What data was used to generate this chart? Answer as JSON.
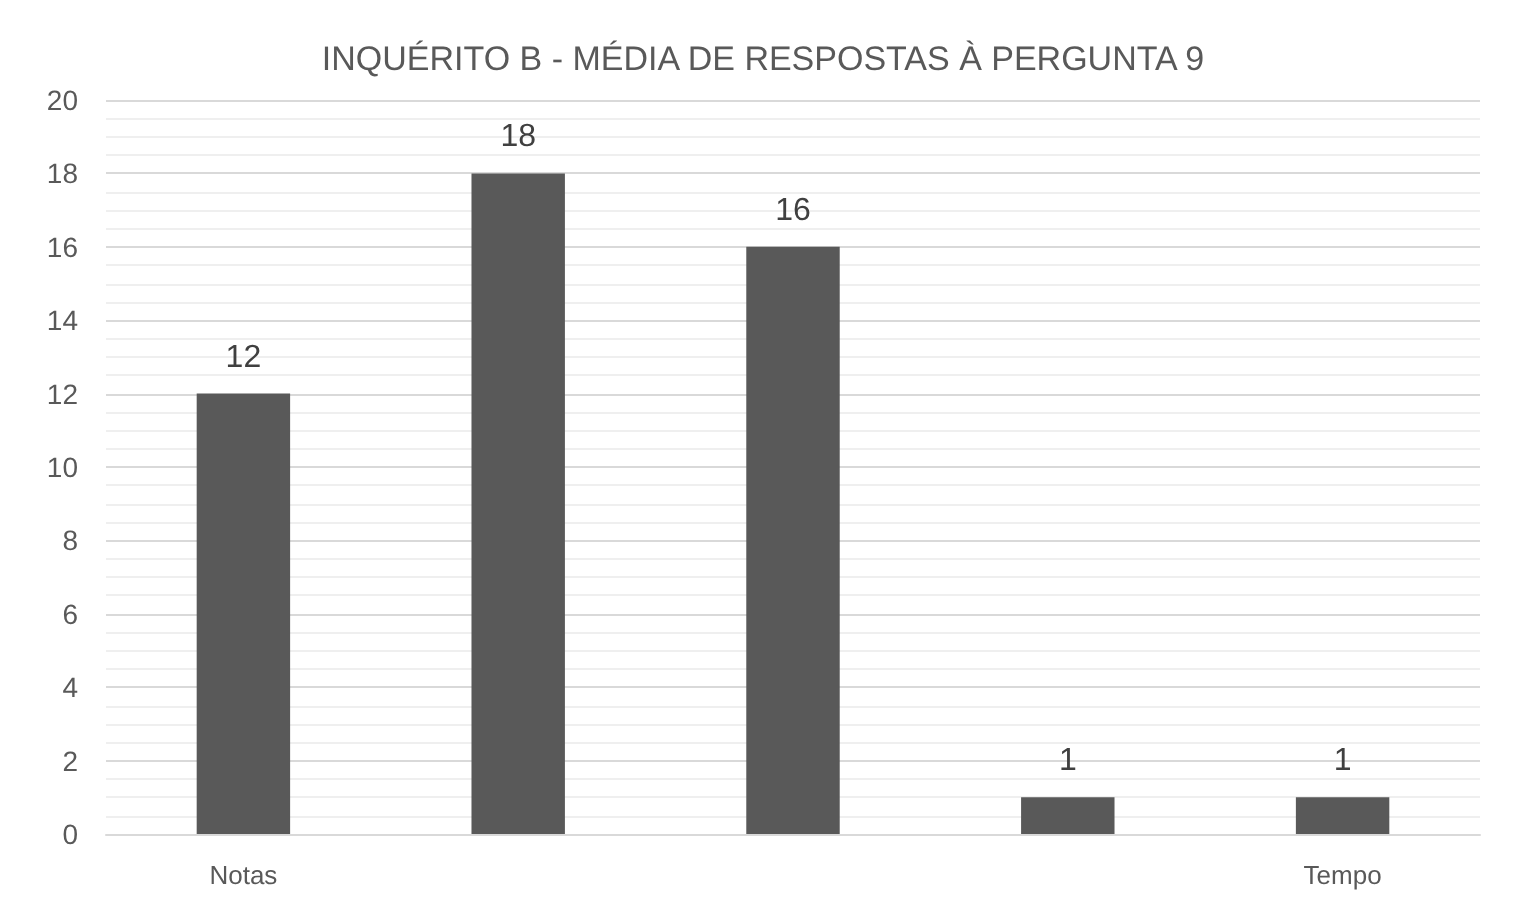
{
  "chart_data": {
    "type": "bar",
    "title": "INQUÉRITO B - MÉDIA DE RESPOSTAS À PERGUNTA 9",
    "categories": [
      "Notas",
      null,
      null,
      null,
      "Tempo"
    ],
    "values": [
      12,
      18,
      16,
      1,
      1
    ],
    "color": "#595959",
    "ylim": [
      0,
      20
    ],
    "yticks": [
      0,
      2,
      4,
      6,
      8,
      10,
      12,
      14,
      16,
      18,
      20
    ],
    "grid": "y",
    "data_labels": true
  }
}
